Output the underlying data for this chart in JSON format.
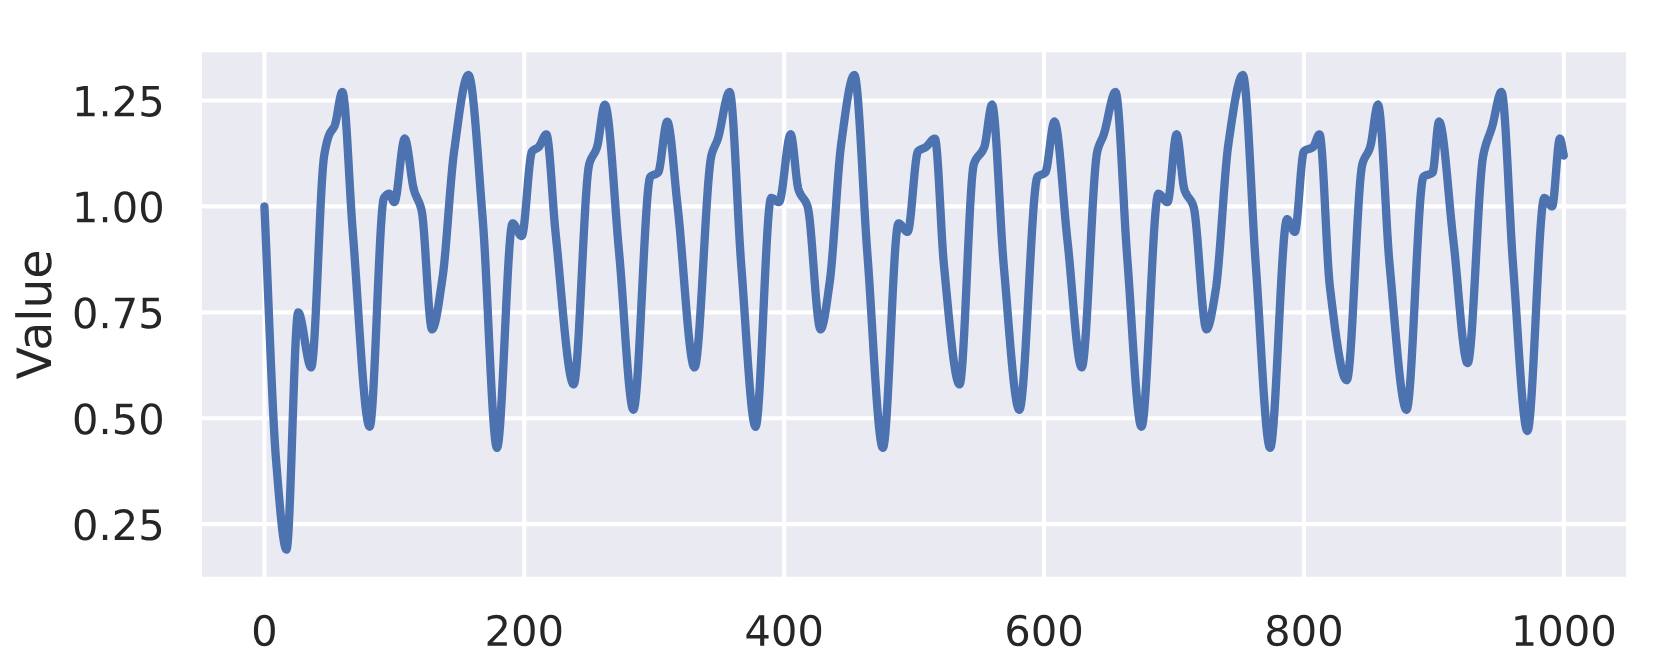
{
  "chart_data": {
    "type": "line",
    "ylabel": "Value",
    "xlim": [
      -50,
      1050
    ],
    "ylim": [
      0.12,
      1.37
    ],
    "xticks": [
      0,
      200,
      400,
      600,
      800,
      1000
    ],
    "yticks": [
      {
        "value": 0.25,
        "label": "0.25"
      },
      {
        "value": 0.5,
        "label": "0.50"
      },
      {
        "value": 0.75,
        "label": "0.75"
      },
      {
        "value": 1.0,
        "label": "1.00"
      },
      {
        "value": 1.25,
        "label": "1.25"
      }
    ],
    "grid": true,
    "marker": "none",
    "line_style": "solid",
    "series": [
      {
        "color": "#4c72b0",
        "x": [
          0,
          9,
          17,
          26,
          36,
          46,
          50,
          54,
          60,
          68,
          81,
          92,
          96,
          100,
          108,
          115,
          121,
          129,
          137,
          146,
          157,
          168,
          179,
          191,
          198,
          206,
          211,
          217,
          224,
          238,
          250,
          256,
          262,
          273,
          284,
          297,
          303,
          310,
          318,
          331,
          344,
          349,
          358,
          367,
          378,
          390,
          396,
          405,
          411,
          418,
          428,
          435,
          444,
          454,
          464,
          476,
          488,
          495,
          503,
          509,
          516,
          523,
          535,
          546,
          554,
          560,
          569,
          581,
          595,
          601,
          608,
          618,
          629,
          641,
          646,
          655,
          664,
          675,
          688,
          695,
          702,
          708,
          715,
          725,
          732,
          742,
          753,
          763,
          774,
          787,
          793,
          800,
          807,
          812,
          820,
          833,
          845,
          851,
          857,
          866,
          879,
          892,
          899,
          904,
          915,
          926,
          938,
          945,
          952,
          961,
          972,
          985,
          991,
          997,
          1000
        ],
        "values": [
          1.0,
          0.4,
          0.19,
          0.75,
          0.62,
          1.12,
          1.17,
          1.19,
          1.27,
          0.94,
          0.48,
          1.02,
          1.03,
          1.01,
          1.16,
          1.04,
          0.99,
          0.71,
          0.83,
          1.13,
          1.31,
          0.97,
          0.43,
          0.96,
          0.93,
          1.13,
          1.14,
          1.17,
          0.94,
          0.58,
          1.1,
          1.14,
          1.24,
          0.89,
          0.52,
          1.07,
          1.08,
          1.2,
          1.0,
          0.62,
          1.12,
          1.16,
          1.27,
          0.86,
          0.48,
          1.02,
          1.01,
          1.17,
          1.04,
          1.0,
          0.71,
          0.82,
          1.15,
          1.31,
          0.89,
          0.43,
          0.96,
          0.94,
          1.13,
          1.14,
          1.16,
          0.86,
          0.58,
          1.1,
          1.14,
          1.24,
          0.86,
          0.52,
          1.07,
          1.08,
          1.2,
          0.92,
          0.62,
          1.13,
          1.17,
          1.27,
          0.88,
          0.48,
          1.03,
          1.01,
          1.17,
          1.04,
          1.0,
          0.71,
          0.8,
          1.15,
          1.31,
          0.86,
          0.43,
          0.97,
          0.94,
          1.13,
          1.14,
          1.17,
          0.81,
          0.59,
          1.1,
          1.14,
          1.24,
          0.86,
          0.52,
          1.07,
          1.08,
          1.2,
          0.92,
          0.63,
          1.12,
          1.19,
          1.27,
          0.86,
          0.47,
          1.02,
          1.0,
          1.16,
          1.12
        ]
      }
    ]
  }
}
